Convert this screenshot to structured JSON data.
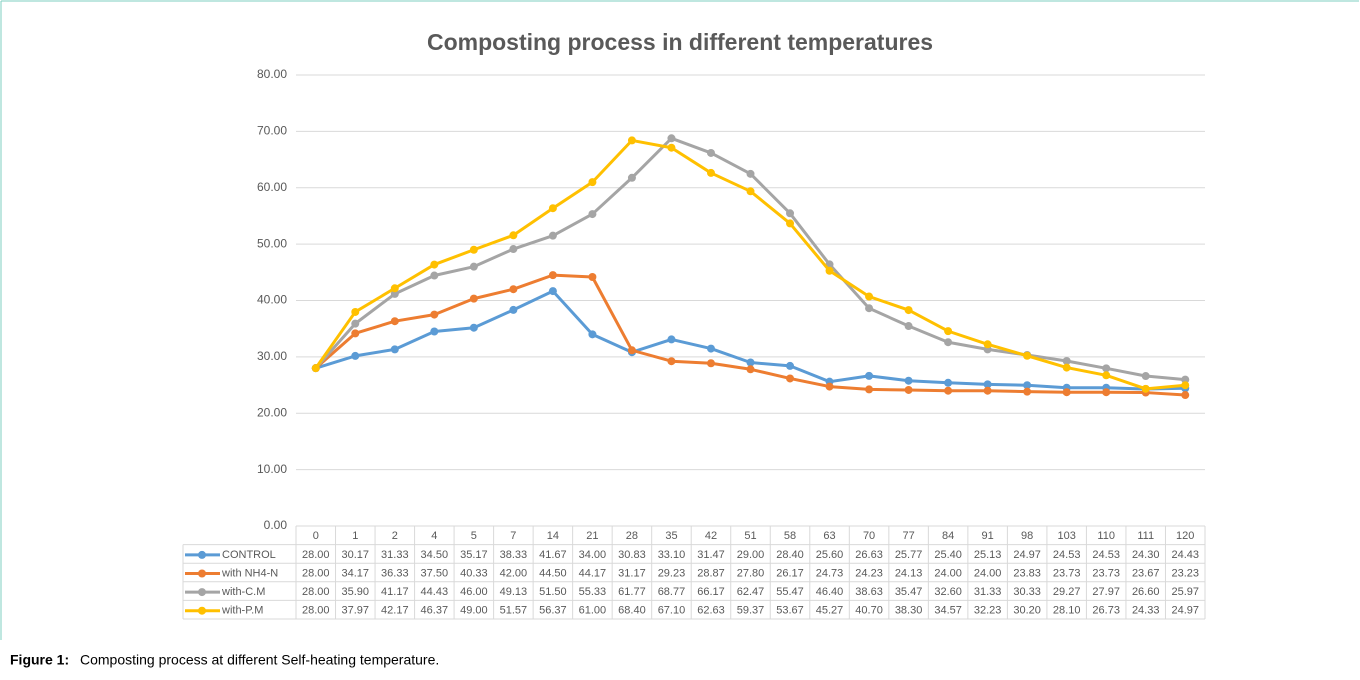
{
  "chart_data": {
    "type": "line",
    "title": "Composting process in different temperatures",
    "categories": [
      "0",
      "1",
      "2",
      "4",
      "5",
      "7",
      "14",
      "21",
      "28",
      "35",
      "42",
      "51",
      "58",
      "63",
      "70",
      "77",
      "84",
      "91",
      "98",
      "103",
      "110",
      "111",
      "120"
    ],
    "ylim": [
      0,
      80
    ],
    "yticks": [
      {
        "value": 0,
        "label": "0.00"
      },
      {
        "value": 10,
        "label": "10.00"
      },
      {
        "value": 20,
        "label": "20.00"
      },
      {
        "value": 30,
        "label": "30.00"
      },
      {
        "value": 40,
        "label": "40.00"
      },
      {
        "value": 50,
        "label": "50.00"
      },
      {
        "value": 60,
        "label": "60.00"
      },
      {
        "value": 70,
        "label": "70.00"
      },
      {
        "value": 80,
        "label": "80.00"
      }
    ],
    "grid": true,
    "series": [
      {
        "name": "CONTROL",
        "color": "#5b9bd5",
        "values": [
          28,
          30.17,
          31.33,
          34.5,
          35.17,
          38.33,
          41.67,
          34,
          30.83,
          33.1,
          31.47,
          29,
          28.4,
          25.6,
          26.63,
          25.77,
          25.4,
          25.13,
          24.97,
          24.53,
          24.53,
          24.3,
          24.43
        ],
        "value_labels": [
          "28.00",
          "30.17",
          "31.33",
          "34.50",
          "35.17",
          "38.33",
          "41.67",
          "34.00",
          "30.83",
          "33.10",
          "31.47",
          "29.00",
          "28.40",
          "25.60",
          "26.63",
          "25.77",
          "25.40",
          "25.13",
          "24.97",
          "24.53",
          "24.53",
          "24.30",
          "24.43"
        ]
      },
      {
        "name": "with NH4-N",
        "color": "#ed7d31",
        "values": [
          28,
          34.17,
          36.33,
          37.5,
          40.33,
          42,
          44.5,
          44.17,
          31.17,
          29.23,
          28.87,
          27.8,
          26.17,
          24.73,
          24.23,
          24.13,
          24,
          24,
          23.83,
          23.73,
          23.73,
          23.67,
          23.23
        ],
        "value_labels": [
          "28.00",
          "34.17",
          "36.33",
          "37.50",
          "40.33",
          "42.00",
          "44.50",
          "44.17",
          "31.17",
          "29.23",
          "28.87",
          "27.80",
          "26.17",
          "24.73",
          "24.23",
          "24.13",
          "24.00",
          "24.00",
          "23.83",
          "23.73",
          "23.73",
          "23.67",
          "23.23"
        ]
      },
      {
        "name": "with-C.M",
        "color": "#a5a5a5",
        "values": [
          28,
          35.9,
          41.17,
          44.43,
          46,
          49.13,
          51.5,
          55.33,
          61.77,
          68.77,
          66.17,
          62.47,
          55.47,
          46.4,
          38.63,
          35.47,
          32.6,
          31.33,
          30.33,
          29.27,
          27.97,
          26.6,
          25.97
        ],
        "value_labels": [
          "28.00",
          "35.90",
          "41.17",
          "44.43",
          "46.00",
          "49.13",
          "51.50",
          "55.33",
          "61.77",
          "68.77",
          "66.17",
          "62.47",
          "55.47",
          "46.40",
          "38.63",
          "35.47",
          "32.60",
          "31.33",
          "30.33",
          "29.27",
          "27.97",
          "26.60",
          "25.97"
        ]
      },
      {
        "name": "with-P.M",
        "color": "#ffc000",
        "values": [
          28,
          37.97,
          42.17,
          46.37,
          49,
          51.57,
          56.37,
          61,
          68.4,
          67.1,
          62.63,
          59.37,
          53.67,
          45.27,
          40.7,
          38.3,
          34.57,
          32.23,
          30.2,
          28.1,
          26.73,
          24.33,
          24.97
        ],
        "value_labels": [
          "28.00",
          "37.97",
          "42.17",
          "46.37",
          "49.00",
          "51.57",
          "56.37",
          "61.00",
          "68.40",
          "67.10",
          "62.63",
          "59.37",
          "53.67",
          "45.27",
          "40.70",
          "38.30",
          "34.57",
          "32.23",
          "30.20",
          "28.10",
          "26.73",
          "24.33",
          "24.97"
        ]
      }
    ]
  },
  "caption": {
    "label": "Figure 1:",
    "text": "Composting process at different Self-heating temperature."
  }
}
